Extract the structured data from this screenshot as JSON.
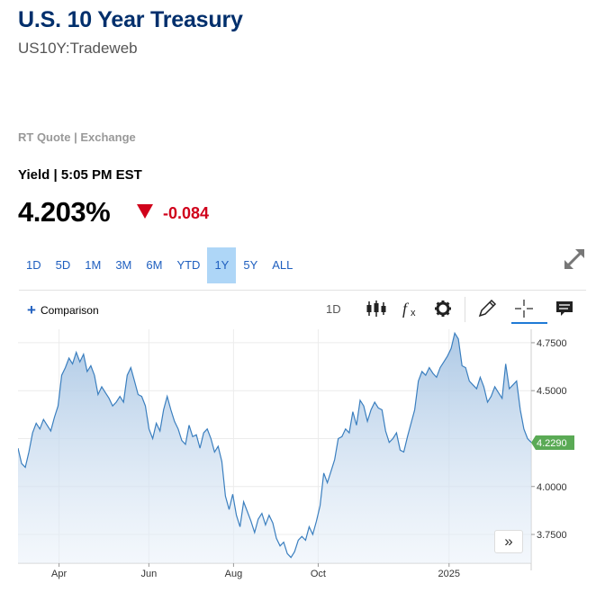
{
  "header": {
    "title": "U.S. 10 Year Treasury",
    "symbol": "US10Y:Tradeweb",
    "quote_source": "RT Quote | Exchange",
    "yield_label": "Yield | 5:05 PM EST",
    "price": "4.203%",
    "change": "-0.084",
    "change_direction": "down",
    "change_color": "#d0021b"
  },
  "ranges": {
    "items": [
      "1D",
      "5D",
      "1M",
      "3M",
      "6M",
      "YTD",
      "1Y",
      "5Y",
      "ALL"
    ],
    "selected": "1Y"
  },
  "toolbar": {
    "comparison_label": "Comparison",
    "interval_label": "1D",
    "icons": [
      "candlestick-icon",
      "indicator-fx-icon",
      "settings-gear-icon",
      "draw-pencil-icon",
      "crosshair-icon",
      "comment-icon"
    ]
  },
  "chart_data": {
    "type": "area",
    "x_ticks": [
      "Apr",
      "Jun",
      "Aug",
      "Oct",
      "2025"
    ],
    "y_ticks": [
      "4.7500",
      "4.5000",
      "4.0000",
      "3.7500"
    ],
    "ylim": [
      3.6,
      4.82
    ],
    "last_value_label": "4.2290",
    "last_value": 4.229,
    "line_color": "#3b7fbf",
    "label_color": "#5aaa55",
    "grid": true,
    "series": [
      {
        "values": [
          4.2,
          4.12,
          4.1,
          4.18,
          4.28,
          4.33,
          4.3,
          4.35,
          4.32,
          4.29,
          4.36,
          4.42,
          4.58,
          4.62,
          4.67,
          4.64,
          4.7,
          4.65,
          4.69,
          4.6,
          4.63,
          4.58,
          4.48,
          4.52,
          4.49,
          4.46,
          4.42,
          4.44,
          4.47,
          4.44,
          4.58,
          4.62,
          4.55,
          4.48,
          4.47,
          4.42,
          4.3,
          4.25,
          4.33,
          4.29,
          4.4,
          4.47,
          4.4,
          4.34,
          4.3,
          4.24,
          4.22,
          4.32,
          4.26,
          4.27,
          4.2,
          4.28,
          4.3,
          4.25,
          4.18,
          4.21,
          4.13,
          3.95,
          3.88,
          3.96,
          3.85,
          3.79,
          3.92,
          3.87,
          3.82,
          3.76,
          3.83,
          3.86,
          3.8,
          3.85,
          3.81,
          3.73,
          3.69,
          3.71,
          3.65,
          3.63,
          3.66,
          3.72,
          3.74,
          3.72,
          3.79,
          3.75,
          3.82,
          3.9,
          4.07,
          4.02,
          4.08,
          4.14,
          4.25,
          4.26,
          4.3,
          4.28,
          4.39,
          4.32,
          4.45,
          4.42,
          4.34,
          4.4,
          4.44,
          4.41,
          4.4,
          4.29,
          4.23,
          4.25,
          4.28,
          4.19,
          4.18,
          4.26,
          4.33,
          4.4,
          4.55,
          4.6,
          4.58,
          4.62,
          4.59,
          4.57,
          4.62,
          4.65,
          4.68,
          4.72,
          4.8,
          4.77,
          4.63,
          4.62,
          4.55,
          4.53,
          4.51,
          4.57,
          4.52,
          4.44,
          4.47,
          4.52,
          4.49,
          4.46,
          4.64,
          4.51,
          4.53,
          4.55,
          4.4,
          4.3,
          4.25,
          4.23
        ]
      }
    ]
  }
}
